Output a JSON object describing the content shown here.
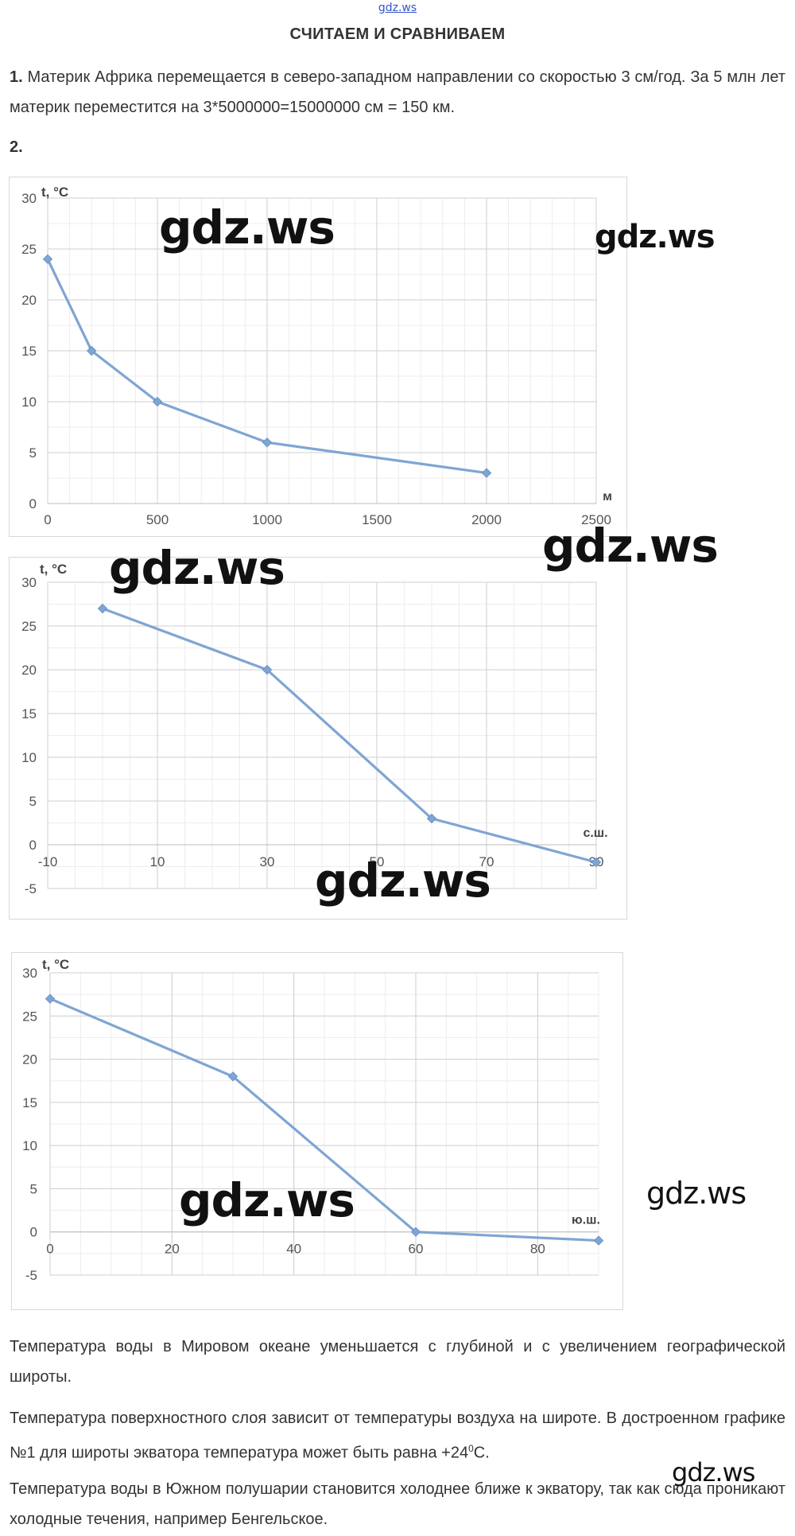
{
  "watermark": "gdz.ws",
  "title": "СЧИТАЕМ И СРАВНИВАЕМ",
  "task1": {
    "number": "1.",
    "text": " Материк Африка перемещается в северо-западном направлении со скоростью 3 см/год. За 5 млн лет материк переместится на 3*5000000=15000000 см = 150 км."
  },
  "task2": {
    "number": "2."
  },
  "chart_data": [
    {
      "type": "line",
      "ylabel": "t, °C",
      "xlabel": "м",
      "x_ticks": [
        "0",
        "500",
        "1000",
        "1500",
        "2000",
        "2500"
      ],
      "y_ticks": [
        "0",
        "5",
        "10",
        "15",
        "20",
        "25",
        "30"
      ],
      "xlim": [
        0,
        2500
      ],
      "ylim": [
        0,
        30
      ],
      "x": [
        0,
        200,
        500,
        1000,
        2000
      ],
      "y": [
        24,
        15,
        10,
        6,
        3
      ],
      "color": "#7fa5d3",
      "grid": true
    },
    {
      "type": "line",
      "ylabel": "t, °C",
      "xlabel": "с.ш.",
      "x_ticks": [
        "-10",
        "10",
        "30",
        "50",
        "70",
        "90"
      ],
      "y_ticks": [
        "-5",
        "0",
        "5",
        "10",
        "15",
        "20",
        "25",
        "30"
      ],
      "xlim": [
        -10,
        90
      ],
      "ylim": [
        -5,
        30
      ],
      "x": [
        0,
        30,
        60,
        90
      ],
      "y": [
        27,
        20,
        3,
        -2
      ],
      "color": "#7fa5d3",
      "grid": true
    },
    {
      "type": "line",
      "ylabel": "t, °C",
      "xlabel": "ю.ш.",
      "x_ticks": [
        "0",
        "20",
        "40",
        "60",
        "80"
      ],
      "y_ticks": [
        "-5",
        "0",
        "5",
        "10",
        "15",
        "20",
        "25",
        "30"
      ],
      "xlim": [
        0,
        90
      ],
      "ylim": [
        -5,
        30
      ],
      "x": [
        0,
        30,
        60,
        90
      ],
      "y": [
        27,
        18,
        0,
        -1
      ],
      "color": "#7fa5d3",
      "grid": true
    }
  ],
  "conclusions": {
    "p1": "Температура воды в Мировом океане уменьшается с глубиной и с увеличением географической широты.",
    "p2_before": "Температура поверхностного слоя зависит от температуры воздуха на широте. В достроенном графике №1 для широты экватора температура может быть равна +24",
    "p2_sup": "0",
    "p2_after": "С.",
    "p3": "Температура воды в Южном полушарии становится холоднее ближе к экватору, так как сюда проникают холодные течения, например Бенгельское."
  }
}
